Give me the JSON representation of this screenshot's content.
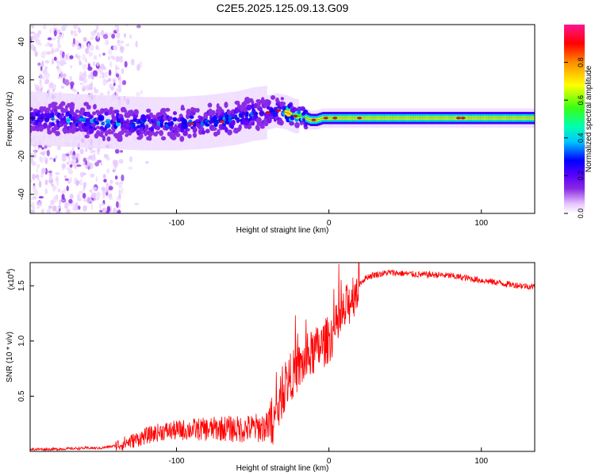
{
  "figure_title": "C2E5.2025.125.09.13.G09",
  "chart_data": [
    {
      "type": "heatmap",
      "title": "C2E5.2025.125.09.13.G09",
      "xlabel": "Height of straight line (km)",
      "ylabel": "Frequency (Hz)",
      "xlim": [
        -196,
        135
      ],
      "ylim": [
        -50,
        49
      ],
      "x_ticks": [
        -100,
        0,
        100
      ],
      "x_tick_labels": [
        "-100",
        "0",
        "100"
      ],
      "y_ticks": [
        -40,
        -20,
        0,
        20,
        40
      ],
      "y_tick_labels": [
        "-40",
        "-20",
        "0",
        "20",
        "40"
      ],
      "colorbar": {
        "label": "Normalized spectral amplitude",
        "range": [
          0,
          1
        ],
        "ticks": [
          0.0,
          0.2,
          0.4,
          0.6,
          0.8
        ],
        "tick_labels": [
          "0.0",
          "0.2",
          "0.4",
          "0.6",
          "0.8"
        ],
        "colormap": [
          "#ffffff",
          "#e6c6ff",
          "#8a2be2",
          "#5a00ff",
          "#0000ff",
          "#00c8ff",
          "#00ffb0",
          "#39ff14",
          "#ffff00",
          "#ff8c00",
          "#ff0000",
          "#ff1493"
        ]
      },
      "center_frequency_trace": {
        "height_km": [
          -196,
          -150,
          -120,
          -100,
          -80,
          -60,
          -50,
          -40,
          -34,
          -28,
          -22,
          -18,
          -12,
          -8,
          -4,
          0,
          4,
          10,
          20,
          40,
          80,
          120,
          135
        ],
        "frequency_hz": [
          0,
          -2,
          -3,
          -3,
          -2,
          0,
          2,
          3,
          4,
          3,
          1,
          1,
          -1,
          -1,
          0,
          0,
          0,
          0,
          0,
          0,
          0,
          0,
          0
        ]
      },
      "scatter_region": {
        "height_km": [
          -196,
          -135
        ],
        "frequency_hz": [
          -50,
          49
        ]
      }
    },
    {
      "type": "line",
      "xlabel": "Height of straight line (km)",
      "ylabel": "SNR (10 * v/v)",
      "y_multiplier": "(x10",
      "y_multiplier_exp": "4",
      "y_multiplier_close": ")",
      "xlim": [
        -196,
        135
      ],
      "ylim": [
        0.0,
        1.71
      ],
      "x_ticks": [
        -100,
        0,
        100
      ],
      "x_tick_labels": [
        "-100",
        "0",
        "100"
      ],
      "y_ticks": [
        0.5,
        1.0,
        1.5
      ],
      "y_tick_labels": [
        "0.5",
        "1.0",
        "1.5"
      ],
      "line_color": "#ff0000",
      "series": [
        {
          "name": "SNR",
          "x": [
            -196,
            -180,
            -160,
            -150,
            -140,
            -130,
            -120,
            -110,
            -100,
            -90,
            -80,
            -70,
            -60,
            -50,
            -40,
            -35,
            -30,
            -25,
            -20,
            -15,
            -10,
            -5,
            0,
            5,
            10,
            15,
            20,
            25,
            30,
            40,
            50,
            60,
            70,
            80,
            90,
            100,
            110,
            120,
            135
          ],
          "y": [
            0.02,
            0.02,
            0.03,
            0.03,
            0.05,
            0.09,
            0.14,
            0.18,
            0.19,
            0.2,
            0.2,
            0.21,
            0.2,
            0.21,
            0.22,
            0.3,
            0.55,
            0.68,
            0.75,
            0.82,
            0.9,
            0.95,
            1.02,
            1.12,
            1.25,
            1.4,
            1.52,
            1.58,
            1.6,
            1.62,
            1.61,
            1.6,
            1.6,
            1.59,
            1.57,
            1.55,
            1.53,
            1.51,
            1.49
          ]
        }
      ]
    }
  ]
}
